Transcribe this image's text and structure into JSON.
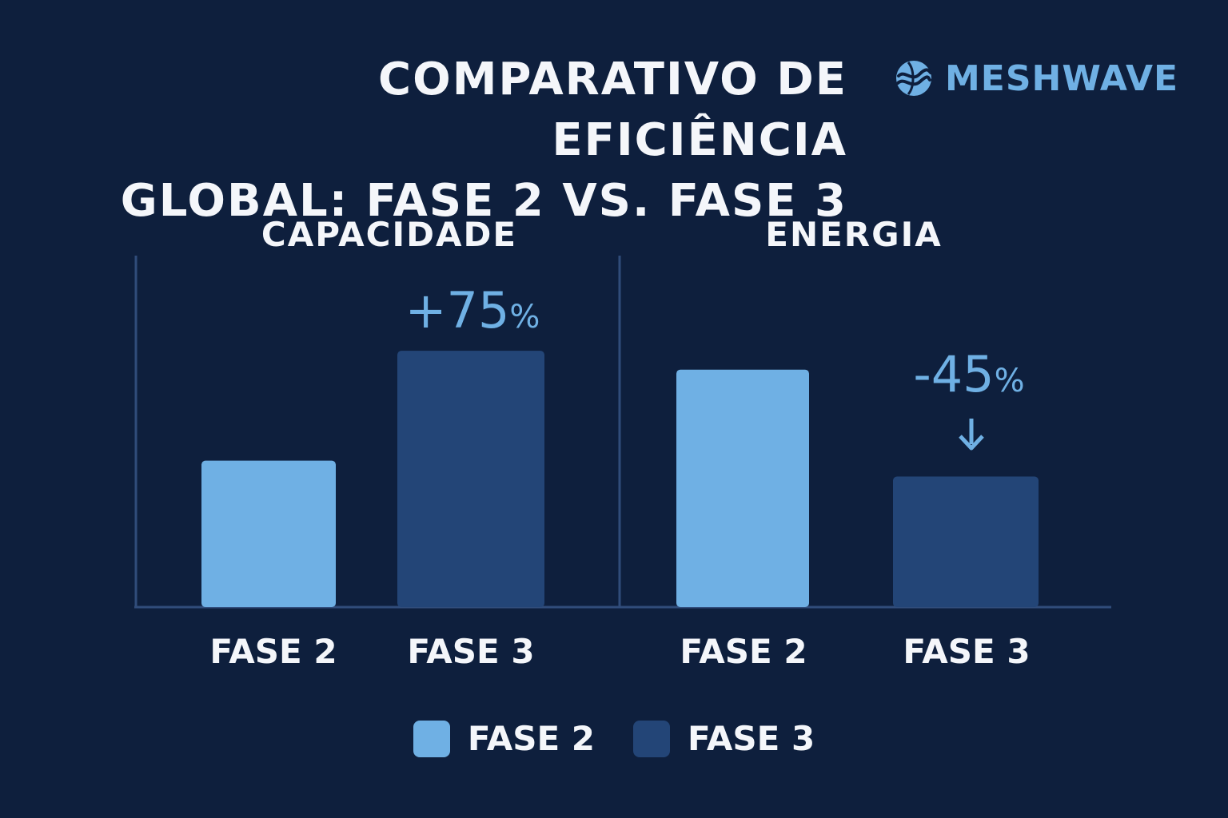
{
  "header": {
    "title_line1": "COMPARATIVO DE EFICIÊNCIA",
    "title_line2": "GLOBAL: FASE 2 VS. FASE 3",
    "brand_name": "MESHWAVE",
    "brand_icon": "wave-globe-icon"
  },
  "colors": {
    "background": "#0e1f3d",
    "fase2": "#6fb0e4",
    "fase3": "#234577",
    "axis": "#304c7a",
    "accent": "#6fb0e4"
  },
  "chart_data": [
    {
      "type": "bar",
      "title": "CAPACIDADE",
      "categories": [
        "FASE 2",
        "FASE 3"
      ],
      "values": [
        100,
        175
      ],
      "annotation": {
        "category": "FASE 3",
        "sign": "+",
        "number": "75",
        "unit": "%",
        "arrow": false
      },
      "ylim": [
        0,
        240
      ],
      "grid": false
    },
    {
      "type": "bar",
      "title": "ENERGIA",
      "categories": [
        "FASE 2",
        "FASE 3"
      ],
      "values": [
        100,
        55
      ],
      "annotation": {
        "category": "FASE 3",
        "sign": "-",
        "number": "45",
        "unit": "%",
        "arrow": true
      },
      "ylim": [
        0,
        148
      ],
      "grid": false
    }
  ],
  "legend": {
    "placement": "bottom-center",
    "items": [
      {
        "label": "FASE 2",
        "color": "#6fb0e4"
      },
      {
        "label": "FASE 3",
        "color": "#234577"
      }
    ]
  }
}
